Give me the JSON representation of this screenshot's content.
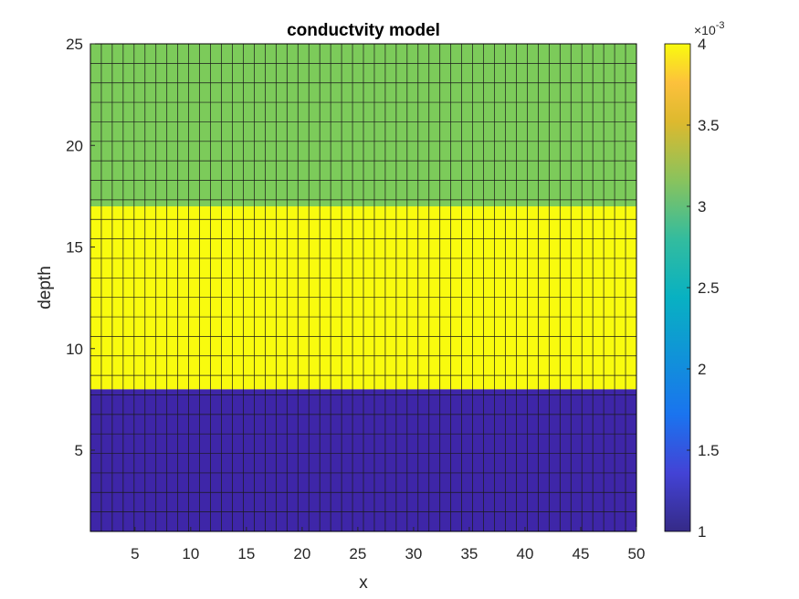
{
  "chart_data": {
    "type": "heatmap",
    "title": "conductvity model",
    "xlabel": "x",
    "ylabel": "depth",
    "xlim": [
      1,
      50
    ],
    "ylim": [
      1,
      25
    ],
    "x_ticks": [
      5,
      10,
      15,
      20,
      25,
      30,
      35,
      40,
      45,
      50
    ],
    "y_ticks": [
      5,
      10,
      15,
      20,
      25
    ],
    "grid_columns": 50,
    "grid_rows": 25,
    "layers": [
      {
        "depth_from": 1,
        "depth_to": 8,
        "value": 0.001,
        "color": "#3e26a8"
      },
      {
        "depth_from": 8,
        "depth_to": 17,
        "value": 0.004,
        "color": "#f9fb0e"
      },
      {
        "depth_from": 17,
        "depth_to": 25,
        "value": 0.003,
        "color": "#7ccb5a"
      }
    ],
    "colorbar": {
      "min": 0.001,
      "max": 0.004,
      "ticks": [
        1,
        1.5,
        2,
        2.5,
        3,
        3.5,
        4
      ],
      "tick_labels": [
        "1",
        "1.5",
        "2",
        "2.5",
        "3",
        "3.5",
        "4"
      ],
      "multiplier_base": "×10",
      "multiplier_exponent": "-3",
      "colormap": "parula"
    },
    "grid": "on"
  }
}
